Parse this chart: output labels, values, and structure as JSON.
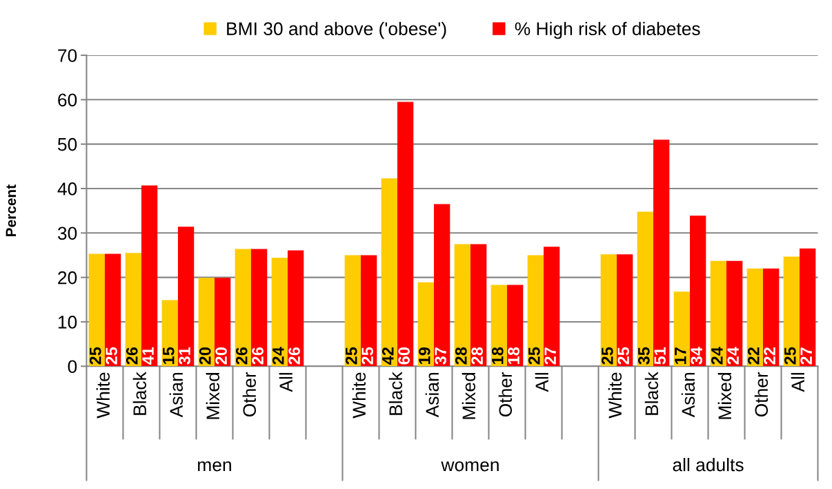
{
  "chart_data": {
    "type": "bar",
    "ylabel": "Percent",
    "categories": [
      "White",
      "Black",
      "Asian",
      "Mixed",
      "Other",
      "All",
      null,
      "White",
      "Black",
      "Asian",
      "Mixed",
      "Other",
      "All",
      null,
      "White",
      "Black",
      "Asian",
      "Mixed",
      "Other",
      "All"
    ],
    "series": [
      {
        "name": "BMI 30 and above ('obese')",
        "color": "#ffcc00",
        "values": [
          25.3,
          25.5,
          14.9,
          19.9,
          26.4,
          24.4,
          null,
          25.0,
          42.3,
          18.9,
          27.5,
          18.3,
          25.0,
          null,
          25.2,
          34.8,
          16.8,
          23.7,
          22.0,
          24.7
        ],
        "value_labels": [
          "25",
          "26",
          "15",
          "20",
          "26",
          "24",
          null,
          "25",
          "42",
          "19",
          "28",
          "18",
          "25",
          null,
          "25",
          "35",
          "17",
          "24",
          "22",
          "25"
        ]
      },
      {
        "name": "% High risk of diabetes",
        "color": "#ff0000",
        "values": [
          25.3,
          40.7,
          31.4,
          19.9,
          26.4,
          26.1,
          null,
          25.0,
          59.5,
          36.5,
          27.5,
          18.3,
          26.9,
          null,
          25.2,
          51.0,
          33.9,
          23.7,
          22.0,
          26.5
        ],
        "value_labels": [
          "25",
          "41",
          "31",
          "20",
          "26",
          "26",
          null,
          "25",
          "60",
          "37",
          "28",
          "18",
          "27",
          null,
          "25",
          "51",
          "34",
          "24",
          "22",
          "27"
        ]
      }
    ],
    "annotations": [
      "men",
      "women",
      "all adults"
    ],
    "ylim": [
      0,
      70
    ],
    "yticks": [
      0,
      10,
      20,
      30,
      40,
      50,
      60,
      70
    ],
    "grid": "y",
    "legend": "top"
  }
}
